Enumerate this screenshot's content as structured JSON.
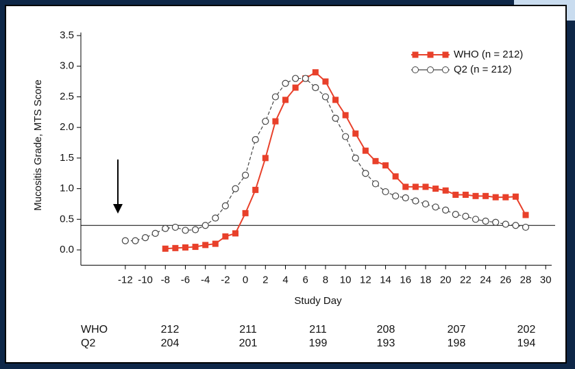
{
  "chart_data": {
    "type": "line",
    "x_label": "Study Day",
    "y_label": "Mucositis Grade, MTS Score",
    "xlim": [
      -16.44,
      30.6
    ],
    "ylim": [
      -0.25,
      3.55
    ],
    "xticks": [
      -12,
      -10,
      -8,
      -6,
      -4,
      -2,
      0,
      2,
      4,
      6,
      8,
      10,
      12,
      14,
      16,
      18,
      20,
      22,
      24,
      26,
      28,
      30
    ],
    "yticks": [
      {
        "value": 0,
        "label": "0.0"
      },
      0.5,
      {
        "value": 1,
        "label": "1.0"
      },
      1.5,
      {
        "value": 2,
        "label": "2.0"
      },
      2.5,
      {
        "value": 3,
        "label": "3.0"
      },
      3.5
    ],
    "reference_line": 0.4,
    "legend": "upper right",
    "series": [
      {
        "name": "WHO (n = 212)",
        "color": "#e8402a",
        "marker": "square",
        "dash": false,
        "x": [
          -8,
          -7,
          -6,
          -5,
          -4,
          -3,
          -2,
          -1,
          0,
          1,
          2,
          3,
          4,
          5,
          6,
          7,
          8,
          9,
          10,
          11,
          12,
          13,
          14,
          15,
          16,
          17,
          18,
          19,
          20,
          21,
          22,
          23,
          24,
          25,
          26,
          27,
          28
        ],
        "values": [
          0.02,
          0.03,
          0.04,
          0.05,
          0.08,
          0.1,
          0.22,
          0.27,
          0.6,
          0.98,
          1.5,
          2.1,
          2.45,
          2.65,
          2.8,
          2.9,
          2.75,
          2.45,
          2.2,
          1.9,
          1.62,
          1.45,
          1.38,
          1.2,
          1.03,
          1.03,
          1.03,
          1.0,
          0.97,
          0.9,
          0.9,
          0.88,
          0.88,
          0.86,
          0.86,
          0.87,
          0.57
        ]
      },
      {
        "name": "Q2 (n = 212)",
        "color": "#444444",
        "marker": "circle",
        "dash": true,
        "x": [
          -12,
          -11,
          -10,
          -9,
          -8,
          -7,
          -6,
          -5,
          -4,
          -3,
          -2,
          -1,
          0,
          1,
          2,
          3,
          4,
          5,
          6,
          7,
          8,
          9,
          10,
          11,
          12,
          13,
          14,
          15,
          16,
          17,
          18,
          19,
          20,
          21,
          22,
          23,
          24,
          25,
          26,
          27,
          28
        ],
        "values": [
          0.15,
          0.15,
          0.2,
          0.27,
          0.35,
          0.37,
          0.32,
          0.33,
          0.4,
          0.52,
          0.72,
          1.0,
          1.22,
          1.8,
          2.1,
          2.5,
          2.72,
          2.8,
          2.8,
          2.65,
          2.5,
          2.15,
          1.85,
          1.5,
          1.25,
          1.08,
          0.95,
          0.88,
          0.85,
          0.8,
          0.75,
          0.7,
          0.65,
          0.58,
          0.55,
          0.5,
          0.47,
          0.45,
          0.42,
          0.4,
          0.37
        ]
      }
    ]
  },
  "risk_table": {
    "rows": [
      {
        "label": "WHO",
        "values": [
          212,
          211,
          211,
          208,
          207,
          202
        ]
      },
      {
        "label": "Q2",
        "values": [
          204,
          201,
          199,
          193,
          198,
          194
        ]
      }
    ]
  }
}
